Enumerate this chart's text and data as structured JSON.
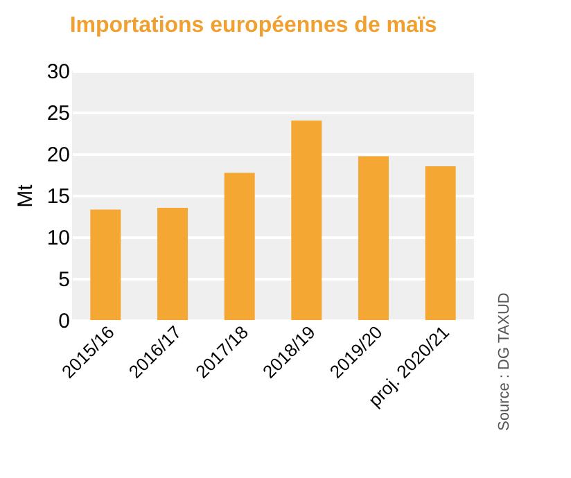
{
  "chart_data": {
    "type": "bar",
    "title": "Importations européennes de maïs",
    "ylabel": "Mt",
    "categories": [
      "2015/16",
      "2016/17",
      "2017/18",
      "2018/19",
      "2019/20",
      "proj. 2020/21"
    ],
    "values": [
      13.3,
      13.5,
      17.7,
      24.0,
      19.7,
      18.5
    ],
    "color": "#f5a733",
    "ylim": [
      0,
      30
    ],
    "yticks": [
      0,
      5,
      10,
      15,
      20,
      25,
      30
    ],
    "grid": "y",
    "annotations": [
      "Source : DG TAXUD"
    ]
  }
}
